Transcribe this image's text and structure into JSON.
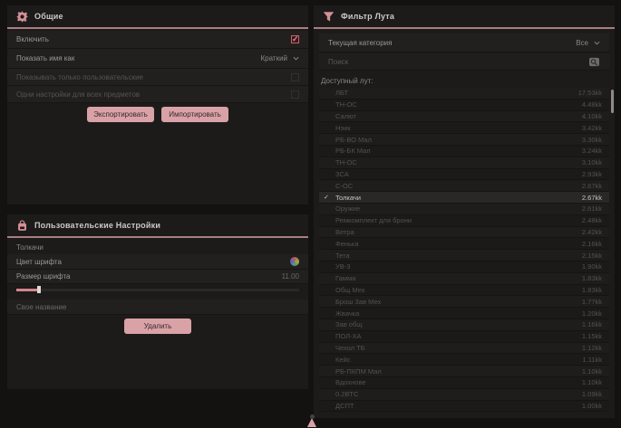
{
  "theme": {
    "accent": "#d9a2a7",
    "accent_dark": "#a87e82",
    "icon_pink": "#d58f95",
    "checkbox_checked": "#c9606c",
    "panel_bg": "#1c1b1a",
    "page_bg": "#131211"
  },
  "general_panel": {
    "title": "Общие",
    "rows": [
      {
        "label": "Включить",
        "control": "checkbox",
        "checked": true
      },
      {
        "label": "Показать имя как",
        "control": "select",
        "value": "Краткий"
      },
      {
        "label": "Показывать только пользовательские",
        "control": "checkbox",
        "checked": false
      },
      {
        "label": "Одни настройки для всех предметов",
        "control": "checkbox",
        "checked": false
      }
    ],
    "check_glyph": "✓",
    "export_label": "Экспортировать",
    "import_label": "Импортировать"
  },
  "custom_panel": {
    "title": "Пользовательские Настройки",
    "item_name": "Толкачи",
    "font_color_label": "Цвет шрифта",
    "font_size_label": "Размер шрифта",
    "font_size_value": "11.00",
    "custom_name_label": "Свое название",
    "delete_label": "Удалить"
  },
  "filter_panel": {
    "title": "Фильтр Лута",
    "category_label": "Текущая категория",
    "category_value": "Все",
    "search_placeholder": "Поиск",
    "list_label": "Доступный лут:",
    "check_glyph": "✓",
    "items": [
      {
        "name": "ЛБТ",
        "value": "17.53kk",
        "selected": false
      },
      {
        "name": "ТН-ОС",
        "value": "4.48kk",
        "selected": false
      },
      {
        "name": "Салют",
        "value": "4.10kk",
        "selected": false
      },
      {
        "name": "Нэик",
        "value": "3.42kk",
        "selected": false
      },
      {
        "name": "РБ-ВО Мал",
        "value": "3.30kk",
        "selected": false
      },
      {
        "name": "РБ-БК Мал",
        "value": "3.24kk",
        "selected": false
      },
      {
        "name": "ТН-ОС",
        "value": "3.10kk",
        "selected": false
      },
      {
        "name": "ЗСА",
        "value": "2.93kk",
        "selected": false
      },
      {
        "name": "С-ОС",
        "value": "2.67kk",
        "selected": false
      },
      {
        "name": "Толкачи",
        "value": "2.67kk",
        "selected": true
      },
      {
        "name": "Оружие",
        "value": "2.61kk",
        "selected": false
      },
      {
        "name": "Ремкомплект для брони",
        "value": "2.48kk",
        "selected": false
      },
      {
        "name": "Ветра",
        "value": "2.42kk",
        "selected": false
      },
      {
        "name": "Фенька",
        "value": "2.16kk",
        "selected": false
      },
      {
        "name": "Тета",
        "value": "2.15kk",
        "selected": false
      },
      {
        "name": "УВ-3",
        "value": "1.90kk",
        "selected": false
      },
      {
        "name": "Гамма",
        "value": "1.83kk",
        "selected": false
      },
      {
        "name": "Общ Мех",
        "value": "1.83kk",
        "selected": false
      },
      {
        "name": "Брош Зав Мех",
        "value": "1.77kk",
        "selected": false
      },
      {
        "name": "Жвачка",
        "value": "1.20kk",
        "selected": false
      },
      {
        "name": "Зав общ",
        "value": "1.16kk",
        "selected": false
      },
      {
        "name": "ПОЛ-ХА",
        "value": "1.15kk",
        "selected": false
      },
      {
        "name": "Чехол ТБ",
        "value": "1.12kk",
        "selected": false
      },
      {
        "name": "Кейс",
        "value": "1.11kk",
        "selected": false
      },
      {
        "name": "РБ-ПКПМ Мал",
        "value": "1.10kk",
        "selected": false
      },
      {
        "name": "Вдохнове",
        "value": "1.10kk",
        "selected": false
      },
      {
        "name": "0.2BTC",
        "value": "1.09kk",
        "selected": false
      },
      {
        "name": "ДСПТ",
        "value": "1.00kk",
        "selected": false
      }
    ]
  }
}
